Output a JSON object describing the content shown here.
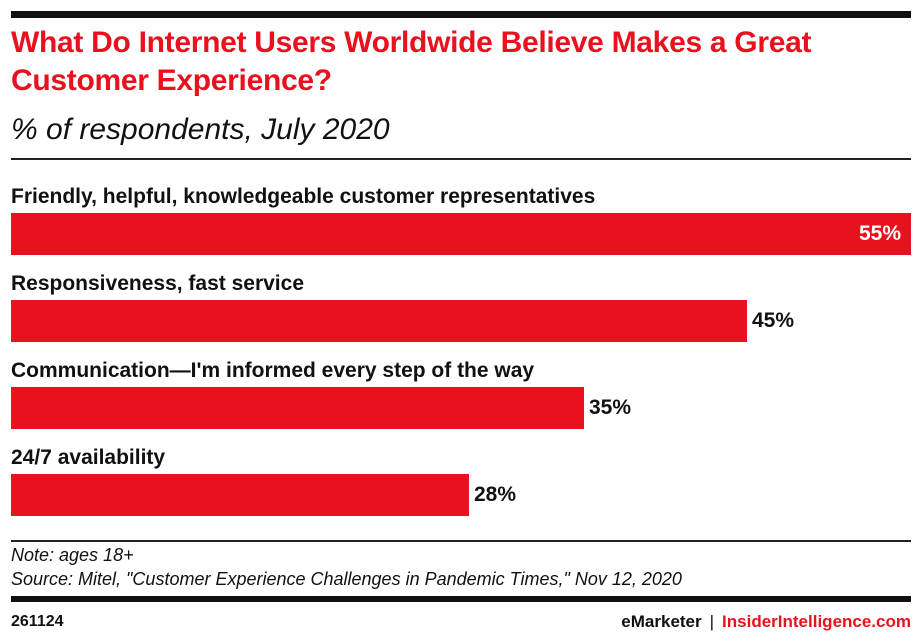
{
  "header": {
    "title": "What Do Internet Users Worldwide Believe Makes a Great Customer Experience?",
    "subtitle": "% of respondents, July 2020"
  },
  "chart_data": {
    "type": "bar",
    "orientation": "horizontal",
    "title": "What Do Internet Users Worldwide Believe Makes a Great Customer Experience?",
    "subtitle": "% of respondents, July 2020",
    "categories": [
      "Friendly, helpful, knowledgeable customer representatives",
      "Responsiveness, fast service",
      "Communication—I'm informed every step of the way",
      "24/7 availability"
    ],
    "values": [
      55,
      45,
      35,
      28
    ],
    "value_labels": [
      "55%",
      "45%",
      "35%",
      "28%"
    ],
    "unit": "%",
    "xlim": [
      0,
      55
    ],
    "grid": false,
    "legend": "none",
    "bar_color": "#e8111d"
  },
  "notes": {
    "note": "Note: ages 18+",
    "source": "Source: Mitel, \"Customer Experience Challenges in Pandemic Times,\" Nov 12, 2020"
  },
  "footer": {
    "chart_id": "261124",
    "brand_left": "eMarketer",
    "separator": "|",
    "brand_right": "InsiderIntelligence.com"
  },
  "colors": {
    "accent": "#e8111d",
    "text": "#111111"
  }
}
